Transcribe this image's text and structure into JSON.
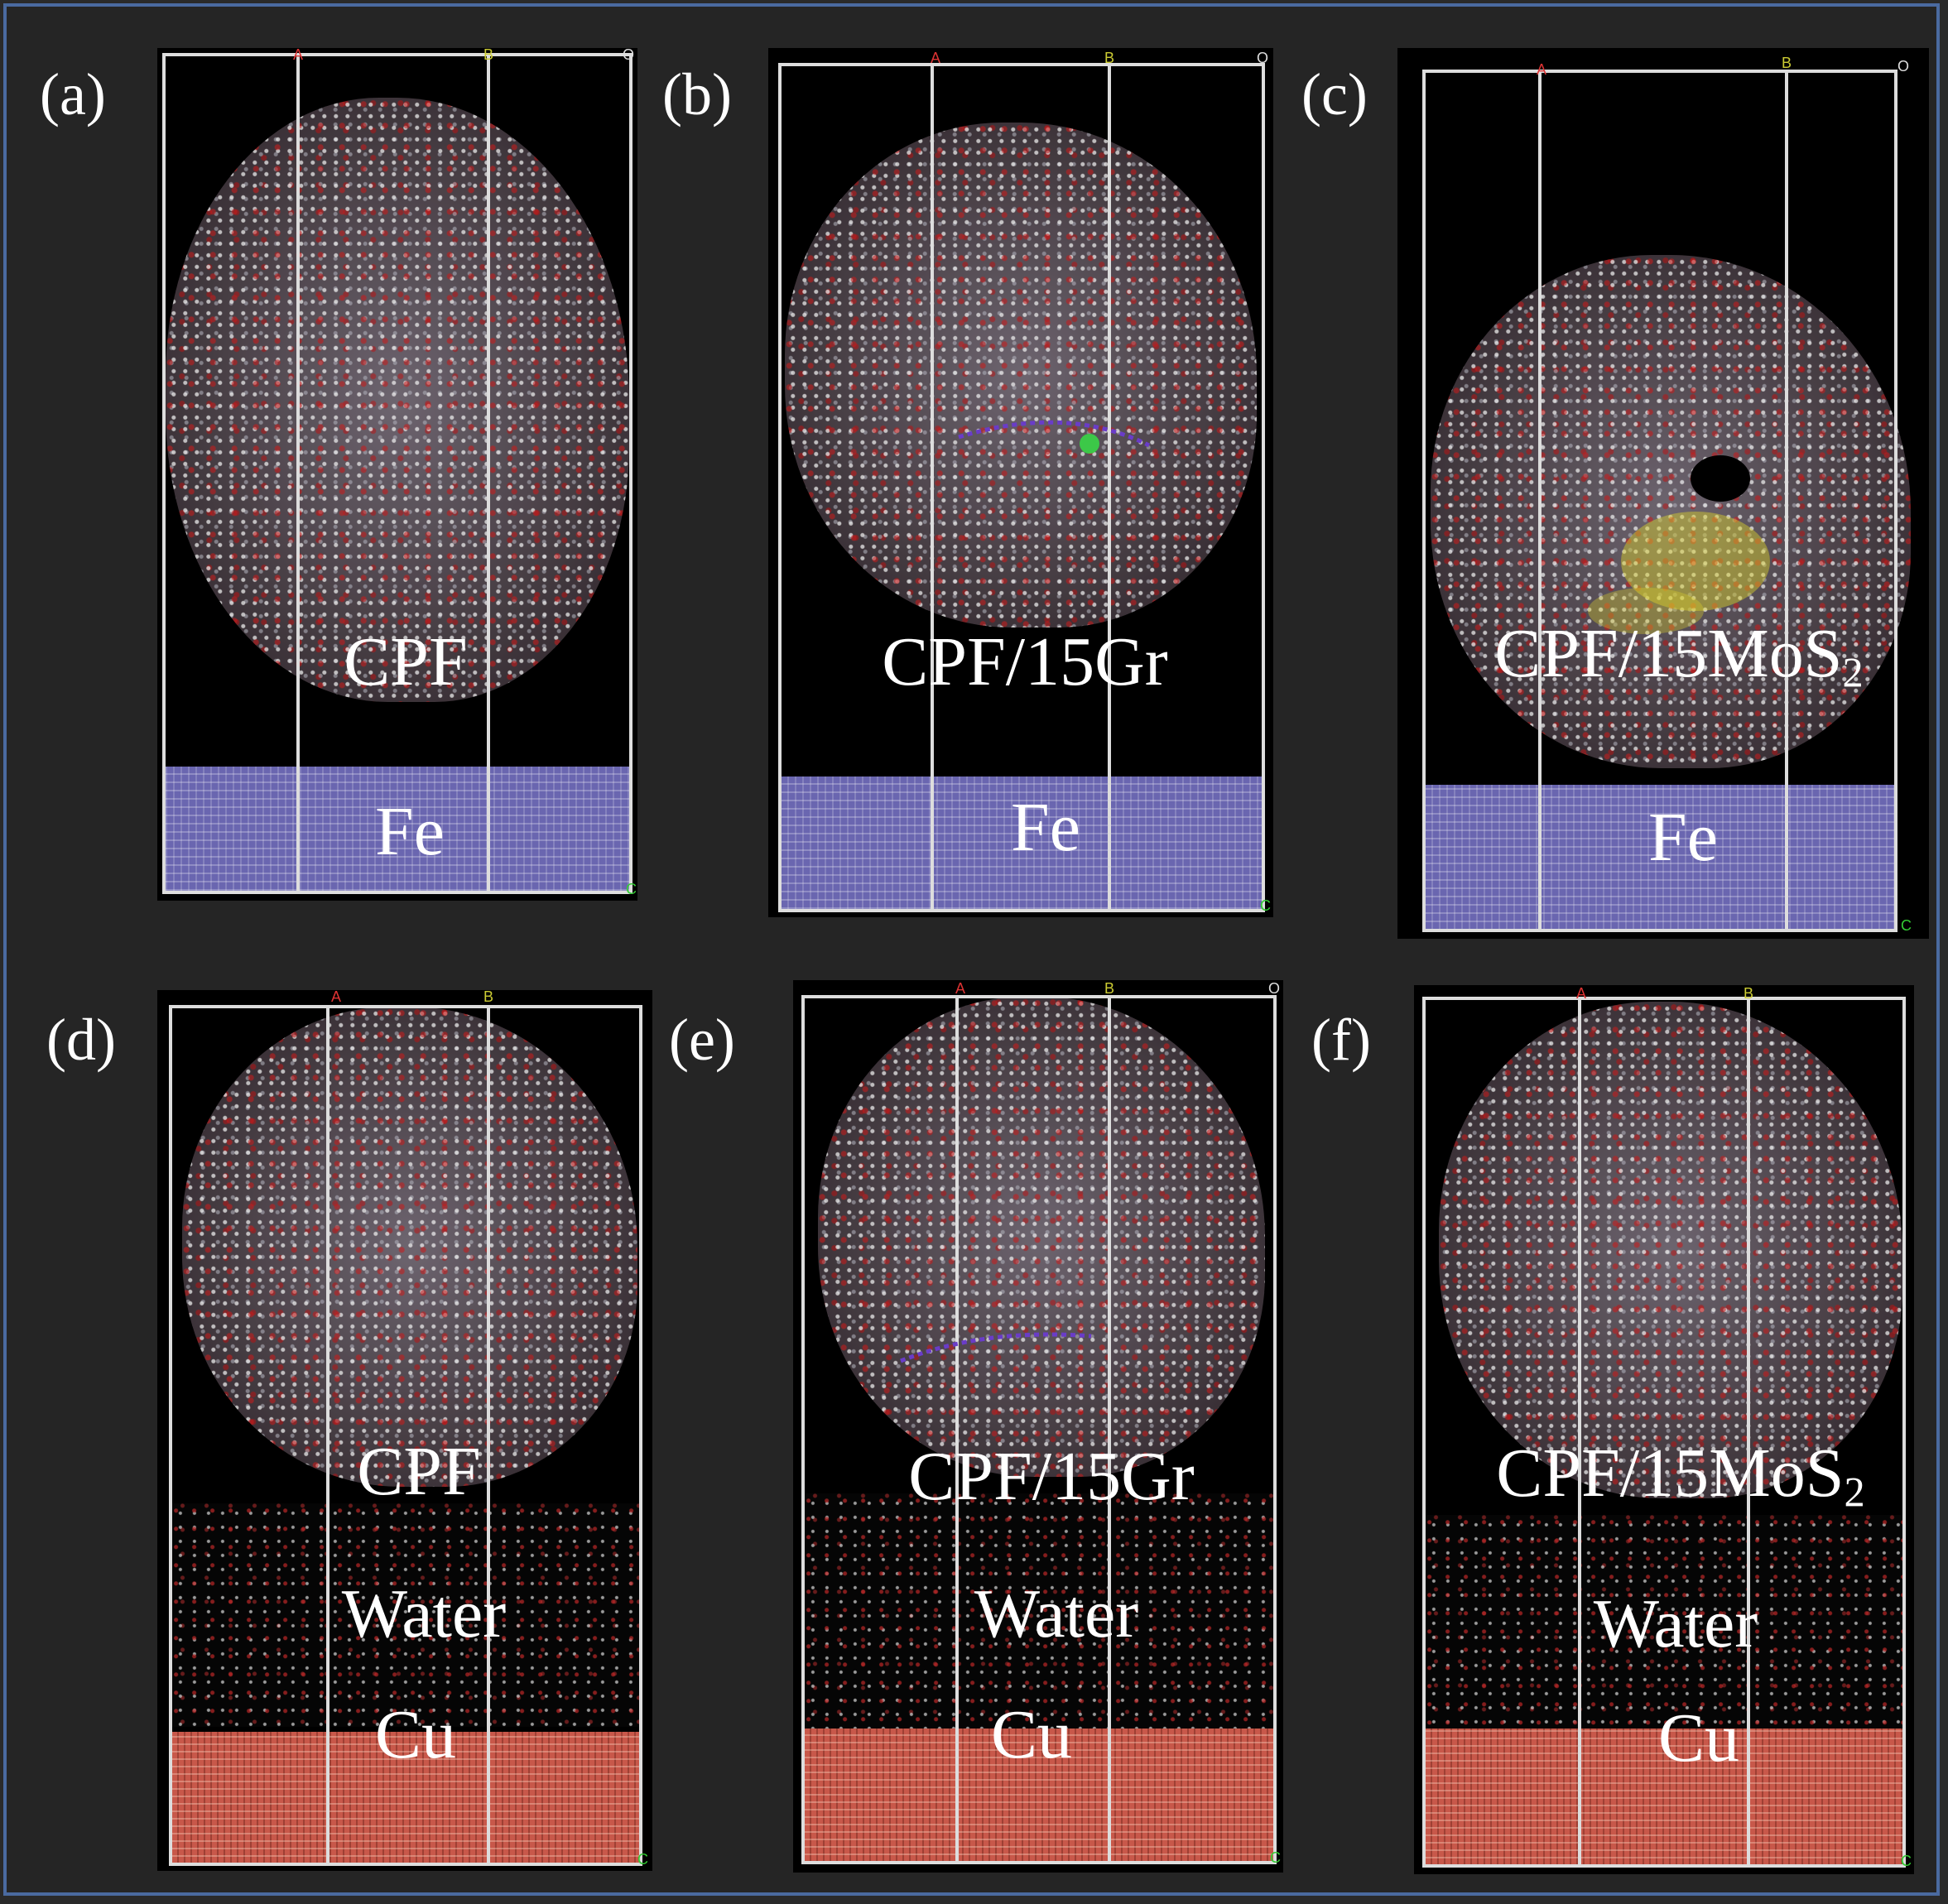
{
  "panels": [
    {
      "id": "a",
      "label": "(a)",
      "molecule": "CPF",
      "substrate": "Fe",
      "water": ""
    },
    {
      "id": "b",
      "label": "(b)",
      "molecule": "CPF/15Gr",
      "substrate": "Fe",
      "water": ""
    },
    {
      "id": "c",
      "label": "(c)",
      "molecule_main": "CPF/15MoS",
      "molecule_sub": "2",
      "substrate": "Fe",
      "water": ""
    },
    {
      "id": "d",
      "label": "(d)",
      "molecule": "CPF",
      "substrate": "Cu",
      "water": "Water"
    },
    {
      "id": "e",
      "label": "(e)",
      "molecule": "CPF/15Gr",
      "substrate": "Cu",
      "water": "Water"
    },
    {
      "id": "f",
      "label": "(f)",
      "molecule_main": "CPF/15MoS",
      "molecule_sub": "2",
      "substrate": "Cu",
      "water": "Water"
    }
  ],
  "axis_letters": {
    "a": "A",
    "b": "B",
    "o": "O",
    "c": "C"
  },
  "colors": {
    "fe": "#6a66b0",
    "cu": "#c8584a",
    "frame": "#4a6aa0",
    "oxygen": "#c81e1e",
    "hydrogen": "#e6e6e6"
  }
}
